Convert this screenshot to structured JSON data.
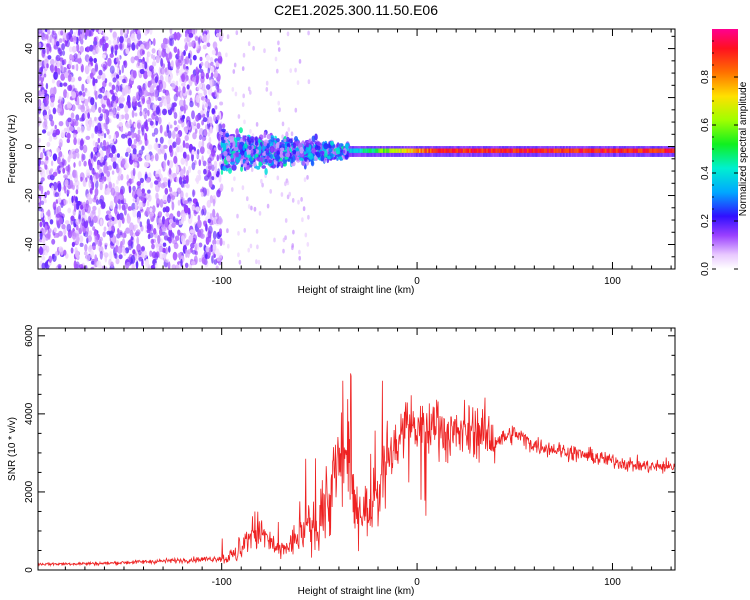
{
  "title": "C2E1.2025.300.11.50.E06",
  "chart_data": [
    {
      "type": "heatmap",
      "xlabel": "Height of straight line (km)",
      "ylabel": "Frequency (Hz)",
      "xlim": [
        -194,
        132
      ],
      "ylim": [
        -50,
        48
      ],
      "xticks": [
        -100,
        0,
        100
      ],
      "yticks": [
        -40,
        -20,
        0,
        20,
        40
      ],
      "colorbar": {
        "label": "Normalized spectral amplitude",
        "range": [
          0.0,
          1.0
        ],
        "ticks": [
          "0.0",
          "0.2",
          "0.4",
          "0.6",
          "0.8"
        ]
      },
      "features": {
        "noise_region_x": [
          -194,
          -100
        ],
        "turbulent_region_x": [
          -100,
          -35
        ],
        "tone_start_x": -35,
        "tone_frequency_hz": -2
      }
    },
    {
      "type": "line",
      "xlabel": "Height of straight line (km)",
      "ylabel": "SNR (10 * v/v)",
      "xlim": [
        -194,
        132
      ],
      "ylim": [
        0,
        6200
      ],
      "xticks": [
        -100,
        0,
        100
      ],
      "yticks": [
        0,
        2000,
        4000,
        6000
      ],
      "series": [
        {
          "name": "SNR",
          "color": "#ee2222",
          "x": [
            -194,
            -160,
            -120,
            -100,
            -90,
            -85,
            -80,
            -75,
            -70,
            -65,
            -60,
            -55,
            -50,
            -45,
            -40,
            -35,
            -32,
            -28,
            -24,
            -20,
            -16,
            -10,
            -5,
            0,
            5,
            10,
            15,
            20,
            30,
            40,
            50,
            60,
            70,
            80,
            90,
            100,
            110,
            120,
            132
          ],
          "values": [
            150,
            170,
            250,
            300,
            420,
            1000,
            950,
            700,
            450,
            650,
            900,
            1100,
            1200,
            1800,
            2800,
            2500,
            1500,
            1600,
            1500,
            2000,
            2600,
            3300,
            3800,
            3600,
            3500,
            3900,
            3400,
            3500,
            3600,
            3300,
            3500,
            3200,
            3100,
            3000,
            2900,
            2800,
            2700,
            2650,
            2650
          ]
        }
      ]
    }
  ]
}
